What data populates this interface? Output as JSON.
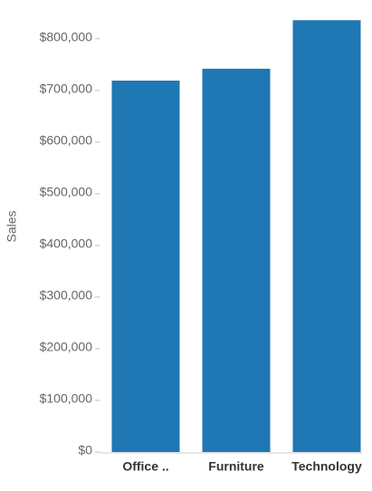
{
  "chart_data": {
    "type": "bar",
    "y_label": "Sales",
    "categories": [
      "Office ..",
      "Furniture",
      "Technology"
    ],
    "values": [
      719000,
      742000,
      836000
    ],
    "color": "#1f77b4",
    "ylim": [
      0,
      840000
    ],
    "yticks": [
      {
        "value": 0,
        "label": "$0"
      },
      {
        "value": 100000,
        "label": "$100,000"
      },
      {
        "value": 200000,
        "label": "$200,000"
      },
      {
        "value": 300000,
        "label": "$300,000"
      },
      {
        "value": 400000,
        "label": "$400,000"
      },
      {
        "value": 500000,
        "label": "$500,000"
      },
      {
        "value": 600000,
        "label": "$600,000"
      },
      {
        "value": 700000,
        "label": "$700,000"
      },
      {
        "value": 800000,
        "label": "$800,000"
      }
    ],
    "grid": false
  }
}
